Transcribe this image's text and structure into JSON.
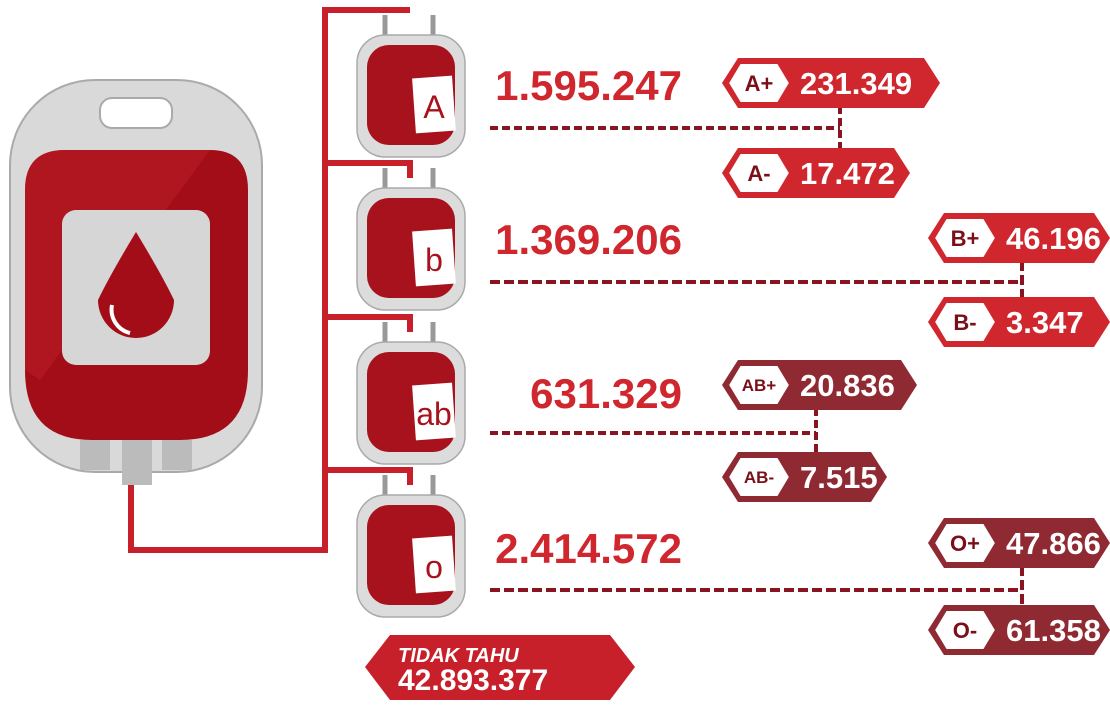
{
  "groups": [
    {
      "letter": "A",
      "total": "1.595.247",
      "positive": {
        "label": "A+",
        "value": "231.349"
      },
      "negative": {
        "label": "A-",
        "value": "17.472"
      }
    },
    {
      "letter": "b",
      "total": "1.369.206",
      "positive": {
        "label": "B+",
        "value": "46.196"
      },
      "negative": {
        "label": "B-",
        "value": "3.347"
      }
    },
    {
      "letter": "ab",
      "total": "631.329",
      "positive": {
        "label": "AB+",
        "value": "20.836"
      },
      "negative": {
        "label": "AB-",
        "value": "7.515"
      }
    },
    {
      "letter": "o",
      "total": "2.414.572",
      "positive": {
        "label": "O+",
        "value": "47.866"
      },
      "negative": {
        "label": "O-",
        "value": "61.358"
      }
    }
  ],
  "unknown": {
    "label": "TIDAK TAHU",
    "value": "42.893.377"
  }
}
